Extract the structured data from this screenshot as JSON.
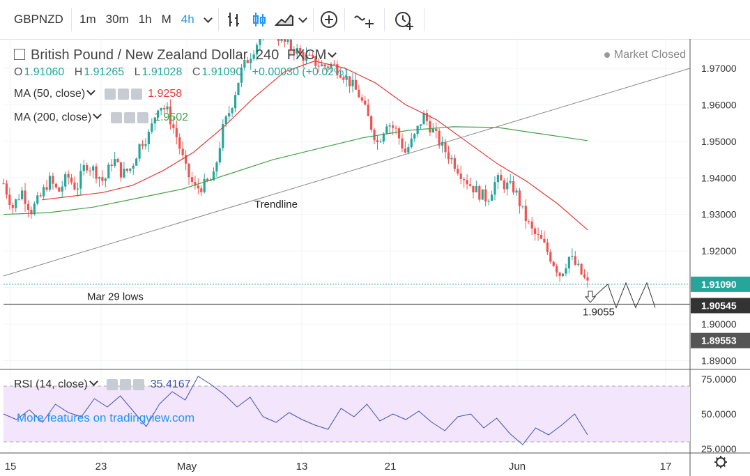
{
  "toolbar": {
    "symbol": "GBPNZD",
    "intervals": [
      "1m",
      "30m",
      "1h",
      "M",
      "4h"
    ],
    "active_interval": "4h"
  },
  "legend": {
    "title": "British Pound / New Zealand Dollar",
    "interval": "240",
    "source": "FXCM",
    "ohlc": {
      "o_label": "O",
      "o": "1.91060",
      "h_label": "H",
      "h": "1.91265",
      "l_label": "L",
      "l": "1.91028",
      "c_label": "C",
      "c": "1.91090",
      "chg": "+0.00030 (+0.02%)"
    },
    "ma50": {
      "label": "MA (50, close)",
      "value": "1.9258"
    },
    "ma200": {
      "label": "MA (200, close)",
      "value": "1.9502"
    },
    "rsi": {
      "label": "RSI (14, close)",
      "value": "35.4167"
    }
  },
  "status": "Market Closed",
  "promo": "More features on tradingview.com",
  "annotations": {
    "trendline": "Trendline",
    "mar29": "Mar 29 lows",
    "target": "1.9055"
  },
  "colors": {
    "up": "#26a69a",
    "down": "#ef5350",
    "ma50": "#e53935",
    "ma200": "#43a047",
    "rsi": "#3f51b5",
    "rsi_band": "#f3e5fb"
  },
  "chart_data": {
    "type": "candlestick",
    "price_axis": {
      "ticks": [
        "1.97000",
        "1.96000",
        "1.95000",
        "1.94000",
        "1.93000",
        "1.92000",
        "1.91000",
        "1.90000",
        "1.89000"
      ],
      "last_price": "1.91090",
      "level_label": "1.90545",
      "extra_label": "1.89553",
      "ylim": [
        1.888,
        1.978
      ]
    },
    "time_axis": {
      "ticks": [
        "15",
        "23",
        "May",
        "13",
        "21",
        "Jun",
        "17"
      ]
    },
    "rsi_axis": {
      "ticks": [
        "75.0000",
        "50.0000",
        "25.0000"
      ],
      "band": [
        30,
        70
      ],
      "ylim": [
        22,
        82
      ]
    },
    "series": [
      {
        "name": "Price",
        "points": [
          1.9385,
          1.932,
          1.9365,
          1.931,
          1.9345,
          1.9395,
          1.936,
          1.9405,
          1.937,
          1.944,
          1.942,
          1.9388,
          1.9455,
          1.941,
          1.9428,
          1.9495,
          1.952,
          1.9605,
          1.958,
          1.951,
          1.942,
          1.937,
          1.938,
          1.9398,
          1.953,
          1.96,
          1.969,
          1.9735,
          1.978,
          1.982,
          1.979,
          1.9765,
          1.975,
          1.973,
          1.9718,
          1.9705,
          1.971,
          1.969,
          1.966,
          1.9625,
          1.956,
          1.9495,
          1.9555,
          1.953,
          1.947,
          1.951,
          1.9572,
          1.953,
          1.9487,
          1.9455,
          1.9418,
          1.9385,
          1.936,
          1.9342,
          1.9395,
          1.938,
          1.937,
          1.93,
          1.925,
          1.9225,
          1.918,
          1.9135,
          1.9185,
          1.915,
          1.9109
        ]
      },
      {
        "name": "MA (50, close)",
        "points": [
          1.934,
          1.935,
          1.936,
          1.938,
          1.942,
          1.947,
          1.954,
          1.962,
          1.969,
          1.972,
          1.97,
          1.966,
          1.96,
          1.956,
          1.95,
          1.944,
          1.939,
          1.933,
          1.9258
        ]
      },
      {
        "name": "MA (200, close)",
        "points": [
          1.93,
          1.9305,
          1.932,
          1.9345,
          1.937,
          1.941,
          1.945,
          1.948,
          1.951,
          1.953,
          1.954,
          1.9538,
          1.952,
          1.9502
        ]
      },
      {
        "name": "RSI (14, close)",
        "points": [
          50,
          46,
          53,
          44,
          57,
          51,
          48,
          61,
          55,
          63,
          52,
          41,
          57,
          66,
          60,
          77,
          71,
          64,
          55,
          62,
          48,
          44,
          51,
          46,
          42,
          39,
          54,
          48,
          57,
          45,
          50,
          46,
          52,
          44,
          38,
          48,
          50,
          40,
          47,
          36,
          28,
          40,
          35,
          42,
          50,
          35
        ]
      }
    ]
  }
}
